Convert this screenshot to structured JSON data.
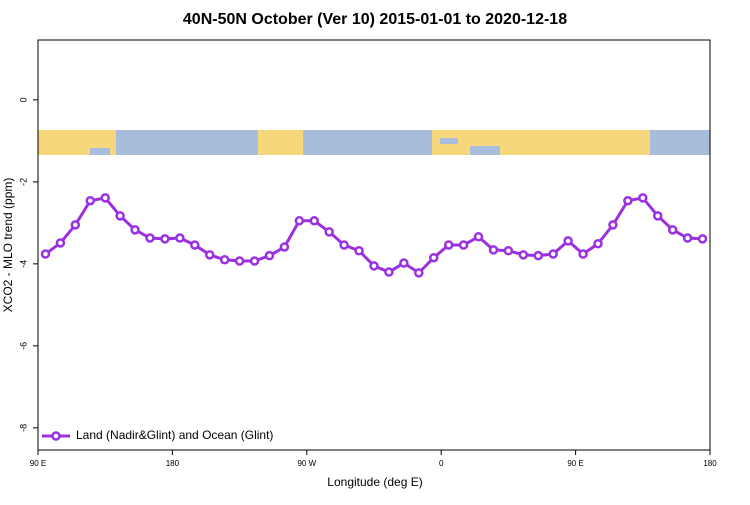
{
  "chart_data": {
    "type": "line",
    "title": "40N-50N October (Ver 10)   2015-01-01 to 2020-12-18",
    "x_label": "Longitude (deg E)",
    "y_label": "XCO2 - MLO trend (ppm)",
    "xlim": [
      90,
      540
    ],
    "xticks": [
      {
        "value": 90,
        "label": "90 E"
      },
      {
        "value": 180,
        "label": "180"
      },
      {
        "value": 270,
        "label": "90 W"
      },
      {
        "value": 360,
        "label": "0"
      },
      {
        "value": 450,
        "label": "90 E"
      },
      {
        "value": 540,
        "label": "180"
      }
    ],
    "ylim": [
      -8.54,
      1.46
    ],
    "yticks": [
      0,
      -2,
      -4,
      -6,
      -8
    ],
    "legend": "bottom-left",
    "x": [
      95,
      105,
      115,
      125,
      135,
      145,
      155,
      165,
      175,
      185,
      195,
      205,
      215,
      225,
      235,
      245,
      255,
      265,
      275,
      285,
      295,
      305,
      315,
      325,
      335,
      345,
      355,
      365,
      375,
      385,
      395,
      405,
      415,
      425,
      435,
      445,
      455,
      465,
      475,
      485,
      495,
      505,
      515,
      525,
      535
    ],
    "series": [
      {
        "name": "Land (Nadir&Glint) and Ocean (Glint)",
        "color": "#9b30e0",
        "values": [
          -3.76,
          -3.49,
          -3.05,
          -2.46,
          -2.39,
          -2.83,
          -3.17,
          -3.37,
          -3.39,
          -3.37,
          -3.54,
          -3.78,
          -3.9,
          -3.93,
          -3.93,
          -3.8,
          -3.59,
          -2.95,
          -2.95,
          -3.22,
          -3.54,
          -3.68,
          -4.05,
          -4.2,
          -3.98,
          -4.22,
          -3.85,
          -3.54,
          -3.54,
          -3.34,
          -3.66,
          -3.68,
          -3.78,
          -3.8,
          -3.76,
          -3.44,
          -3.76,
          -3.51,
          -3.05,
          -2.46,
          -2.39,
          -2.83,
          -3.17,
          -3.37,
          -3.39
        ]
      }
    ]
  }
}
